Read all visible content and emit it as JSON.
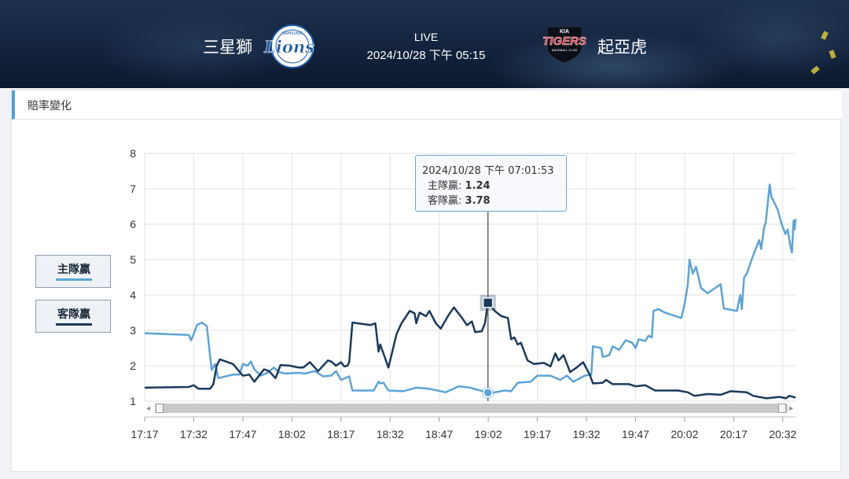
{
  "header": {
    "home_team": "三星獅",
    "away_team": "起亞虎",
    "status": "LIVE",
    "datetime": "2024/10/28 下午 05:15",
    "home_logo_text": "Lions",
    "home_logo_ring": "SAMSUNG",
    "away_logo_text": "TIGERS",
    "away_logo_sub": "BASEBALL CLUB",
    "away_logo_mark": "KIA"
  },
  "panel": {
    "title": "賠率變化"
  },
  "legend": {
    "home_label": "主隊贏",
    "away_label": "客隊贏"
  },
  "tooltip": {
    "time": "2024/10/28 下午 07:01:53",
    "home_label": "主隊贏:",
    "home_value": "1.24",
    "away_label": "客隊贏:",
    "away_value": "3.78"
  },
  "colors": {
    "home": "#5ba4d6",
    "away": "#1a3a5c",
    "accent": "#4ea1d8"
  },
  "chart_data": {
    "type": "line",
    "x_axis": {
      "ticks": [
        "17:17",
        "17:32",
        "17:47",
        "18:02",
        "18:17",
        "18:32",
        "18:47",
        "19:02",
        "19:17",
        "19:32",
        "19:47",
        "20:02",
        "20:17",
        "20:32"
      ],
      "range_minutes": [
        0,
        196
      ]
    },
    "y_axis": {
      "min": 1,
      "max": 8,
      "ticks": [
        1,
        2,
        3,
        4,
        5,
        6,
        7,
        8
      ]
    },
    "grid": true,
    "legend_position": "left",
    "tooltip_minute": 104.9,
    "series": [
      {
        "name": "主隊贏",
        "color": "#5ba4d6",
        "points": [
          [
            0,
            2.92
          ],
          [
            13.5,
            2.87
          ],
          [
            14.2,
            2.72
          ],
          [
            14.8,
            2.85
          ],
          [
            16,
            3.15
          ],
          [
            17.5,
            3.22
          ],
          [
            19,
            3.12
          ],
          [
            20.5,
            1.88
          ],
          [
            21.5,
            2.05
          ],
          [
            22.5,
            1.65
          ],
          [
            27,
            1.75
          ],
          [
            29,
            1.75
          ],
          [
            30,
            2.05
          ],
          [
            31.5,
            2.0
          ],
          [
            32.5,
            2.12
          ],
          [
            33.5,
            1.9
          ],
          [
            35.5,
            1.72
          ],
          [
            37.5,
            1.8
          ],
          [
            39.5,
            1.95
          ],
          [
            41,
            1.82
          ],
          [
            43,
            1.78
          ],
          [
            47,
            1.8
          ],
          [
            49,
            1.78
          ],
          [
            52,
            1.85
          ],
          [
            54.5,
            1.7
          ],
          [
            57,
            1.72
          ],
          [
            58.5,
            1.85
          ],
          [
            60,
            1.6
          ],
          [
            62.5,
            1.7
          ],
          [
            63.5,
            1.3
          ],
          [
            70,
            1.3
          ],
          [
            71.5,
            1.55
          ],
          [
            72,
            1.5
          ],
          [
            73,
            1.52
          ],
          [
            74.5,
            1.3
          ],
          [
            79,
            1.28
          ],
          [
            83,
            1.38
          ],
          [
            87,
            1.35
          ],
          [
            92,
            1.25
          ],
          [
            96,
            1.42
          ],
          [
            99.5,
            1.38
          ],
          [
            104.9,
            1.24
          ],
          [
            107,
            1.25
          ],
          [
            110,
            1.3
          ],
          [
            112,
            1.28
          ],
          [
            114,
            1.52
          ],
          [
            118,
            1.55
          ],
          [
            120,
            1.72
          ],
          [
            124,
            1.72
          ],
          [
            127,
            1.6
          ],
          [
            129,
            1.72
          ],
          [
            131,
            1.55
          ],
          [
            134.5,
            1.72
          ],
          [
            136.5,
            1.75
          ],
          [
            137,
            2.55
          ],
          [
            139.5,
            2.5
          ],
          [
            140,
            2.25
          ],
          [
            142,
            2.3
          ],
          [
            143,
            2.55
          ],
          [
            145,
            2.45
          ],
          [
            147,
            2.72
          ],
          [
            149,
            2.65
          ],
          [
            150,
            2.5
          ],
          [
            151,
            2.75
          ],
          [
            153,
            2.7
          ],
          [
            154,
            2.85
          ],
          [
            155,
            2.8
          ],
          [
            155.5,
            3.55
          ],
          [
            157,
            3.6
          ],
          [
            159,
            3.5
          ],
          [
            164,
            3.35
          ],
          [
            165,
            3.75
          ],
          [
            166,
            4.3
          ],
          [
            166.5,
            5.0
          ],
          [
            167.5,
            4.6
          ],
          [
            168.5,
            4.8
          ],
          [
            170,
            4.2
          ],
          [
            172,
            4.05
          ],
          [
            176,
            4.3
          ],
          [
            177,
            3.62
          ],
          [
            181,
            3.55
          ],
          [
            182,
            4.0
          ],
          [
            182.5,
            3.6
          ],
          [
            183.2,
            4.5
          ],
          [
            184,
            4.6
          ],
          [
            185.5,
            5.0
          ],
          [
            186.5,
            5.25
          ],
          [
            187.8,
            5.55
          ],
          [
            188.4,
            5.3
          ],
          [
            189.3,
            5.9
          ],
          [
            189.8,
            6.05
          ],
          [
            191,
            7.12
          ],
          [
            191.5,
            6.78
          ],
          [
            193.5,
            6.4
          ],
          [
            194.5,
            6.05
          ],
          [
            195.8,
            5.72
          ],
          [
            196.5,
            5.85
          ],
          [
            197.3,
            5.4
          ],
          [
            197.8,
            5.2
          ],
          [
            198.3,
            6.1
          ],
          [
            198.6,
            5.85
          ],
          [
            198.9,
            6.15
          ]
        ]
      },
      {
        "name": "客隊贏",
        "color": "#1a3a5c",
        "points": [
          [
            0,
            1.38
          ],
          [
            13.5,
            1.4
          ],
          [
            15,
            1.45
          ],
          [
            16.5,
            1.35
          ],
          [
            20,
            1.35
          ],
          [
            21,
            1.48
          ],
          [
            22,
            2.0
          ],
          [
            23,
            2.18
          ],
          [
            27,
            2.05
          ],
          [
            30,
            1.72
          ],
          [
            32,
            1.75
          ],
          [
            33.5,
            1.55
          ],
          [
            36.5,
            1.9
          ],
          [
            38,
            1.85
          ],
          [
            40,
            1.65
          ],
          [
            41.5,
            2.02
          ],
          [
            44.5,
            2.0
          ],
          [
            47,
            1.95
          ],
          [
            48.5,
            1.95
          ],
          [
            50.5,
            2.1
          ],
          [
            53,
            1.85
          ],
          [
            56,
            2.15
          ],
          [
            57,
            2.12
          ],
          [
            58.5,
            2.0
          ],
          [
            60,
            2.1
          ],
          [
            61,
            1.98
          ],
          [
            62,
            2.0
          ],
          [
            62.5,
            2.1
          ],
          [
            63.5,
            3.22
          ],
          [
            69,
            3.15
          ],
          [
            70.5,
            3.2
          ],
          [
            71.5,
            2.4
          ],
          [
            72,
            2.6
          ],
          [
            74.5,
            1.95
          ],
          [
            77,
            2.9
          ],
          [
            78.5,
            3.2
          ],
          [
            81,
            3.55
          ],
          [
            82.5,
            3.48
          ],
          [
            83,
            3.2
          ],
          [
            84,
            3.5
          ],
          [
            86,
            3.4
          ],
          [
            87,
            3.55
          ],
          [
            89,
            3.2
          ],
          [
            90.5,
            3.05
          ],
          [
            93,
            3.45
          ],
          [
            94.5,
            3.65
          ],
          [
            97,
            3.35
          ],
          [
            98.5,
            3.15
          ],
          [
            100,
            3.25
          ],
          [
            101,
            2.95
          ],
          [
            103,
            2.97
          ],
          [
            104,
            3.2
          ],
          [
            104.9,
            3.78
          ],
          [
            107,
            3.55
          ],
          [
            109,
            3.4
          ],
          [
            111,
            3.35
          ],
          [
            112,
            2.75
          ],
          [
            113,
            2.8
          ],
          [
            114,
            2.6
          ],
          [
            115,
            2.65
          ],
          [
            117,
            2.15
          ],
          [
            119,
            2.05
          ],
          [
            122,
            2.08
          ],
          [
            124,
            1.98
          ],
          [
            125.5,
            2.35
          ],
          [
            126.5,
            2.15
          ],
          [
            128,
            2.3
          ],
          [
            130,
            1.82
          ],
          [
            132,
            1.95
          ],
          [
            134,
            2.1
          ],
          [
            136,
            1.75
          ],
          [
            137,
            1.5
          ],
          [
            140,
            1.52
          ],
          [
            141,
            1.6
          ],
          [
            143,
            1.48
          ],
          [
            148,
            1.48
          ],
          [
            150,
            1.42
          ],
          [
            153,
            1.45
          ],
          [
            156,
            1.3
          ],
          [
            163,
            1.3
          ],
          [
            166,
            1.25
          ],
          [
            168,
            1.15
          ],
          [
            172,
            1.2
          ],
          [
            176,
            1.18
          ],
          [
            179,
            1.28
          ],
          [
            184,
            1.25
          ],
          [
            186,
            1.15
          ],
          [
            190,
            1.08
          ],
          [
            194,
            1.12
          ],
          [
            196,
            1.08
          ],
          [
            197,
            1.15
          ],
          [
            198.9,
            1.1
          ]
        ]
      }
    ]
  }
}
